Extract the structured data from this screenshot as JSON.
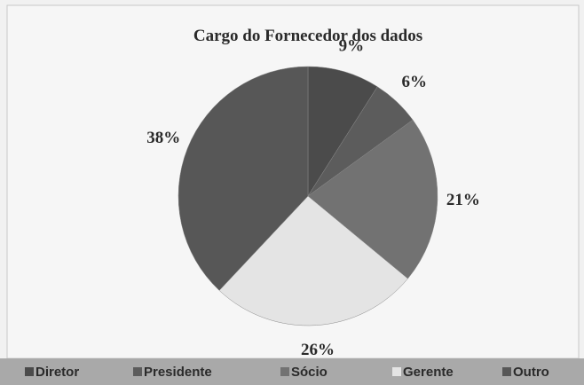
{
  "chart_data": {
    "type": "pie",
    "title": "Cargo do Fornecedor dos dados",
    "categories": [
      "Diretor",
      "Presidente",
      "Sócio",
      "Gerente",
      "Outro"
    ],
    "values": [
      9,
      6,
      21,
      26,
      38
    ],
    "value_labels": [
      "9%",
      "6%",
      "21%",
      "26%",
      "38%"
    ],
    "colors": [
      "#4b4b4b",
      "#5c5c5c",
      "#727272",
      "#e4e4e4",
      "#575757"
    ],
    "legend": "bottom"
  }
}
